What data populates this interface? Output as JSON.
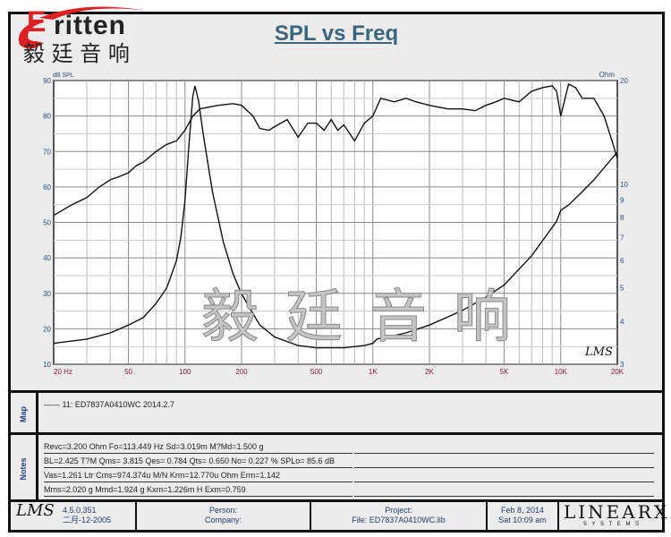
{
  "logo": {
    "brand": "ritten",
    "brand_initial": "E",
    "chinese": "毅 廷 音 响"
  },
  "watermark": "毅廷音响",
  "chart_data": {
    "type": "line",
    "title": "SPL vs Freq",
    "xlabel": "",
    "ylabel": "dB SPL",
    "y2label": "Ohm",
    "xscale": "log",
    "xlim": [
      20,
      20000
    ],
    "ylim": [
      10,
      90
    ],
    "y2scale": "log",
    "y2lim": [
      3,
      20
    ],
    "grid": true,
    "x_ticks": [
      {
        "v": 20,
        "label": "20  Hz"
      },
      {
        "v": 50,
        "label": "50"
      },
      {
        "v": 100,
        "label": "100"
      },
      {
        "v": 200,
        "label": "200"
      },
      {
        "v": 500,
        "label": "500"
      },
      {
        "v": 1000,
        "label": "1K"
      },
      {
        "v": 2000,
        "label": "2K"
      },
      {
        "v": 5000,
        "label": "5K"
      },
      {
        "v": 10000,
        "label": "10K"
      },
      {
        "v": 20000,
        "label": "20K"
      }
    ],
    "y_ticks": [
      10,
      20,
      30,
      40,
      50,
      60,
      70,
      80,
      90
    ],
    "y2_ticks": [
      3,
      4,
      5,
      6,
      7,
      8,
      9,
      10,
      20
    ],
    "series": [
      {
        "name": "SPL",
        "axis": "left",
        "x": [
          20,
          25,
          30,
          35,
          40,
          45,
          50,
          55,
          60,
          70,
          80,
          90,
          100,
          110,
          120,
          150,
          180,
          200,
          230,
          250,
          280,
          300,
          350,
          400,
          450,
          500,
          550,
          600,
          650,
          700,
          800,
          900,
          1000,
          1100,
          1300,
          1500,
          1700,
          2000,
          2500,
          3000,
          3500,
          4000,
          4500,
          5000,
          6000,
          7000,
          8000,
          9000,
          9500,
          10000,
          11000,
          12000,
          13000,
          15000,
          17000,
          19000,
          20000
        ],
        "y": [
          52,
          55,
          57,
          60,
          62,
          63,
          64,
          66,
          67,
          70,
          72,
          73,
          76,
          80,
          82,
          83,
          83.5,
          83,
          80,
          76.5,
          76,
          77,
          79,
          74,
          78,
          78,
          76,
          79,
          76,
          77.5,
          73,
          78,
          80,
          85,
          84,
          85,
          84,
          83,
          82,
          82,
          81.5,
          83,
          84,
          85,
          84,
          87,
          88,
          88.5,
          87,
          80,
          89,
          88,
          85,
          85,
          80,
          72,
          68
        ]
      },
      {
        "name": "Impedance",
        "axis": "right",
        "x": [
          20,
          30,
          40,
          50,
          60,
          70,
          80,
          90,
          95,
          100,
          105,
          110,
          113,
          118,
          125,
          140,
          160,
          180,
          200,
          250,
          300,
          400,
          500,
          700,
          900,
          1000,
          1050,
          1200,
          1500,
          2000,
          3000,
          4000,
          5000,
          7000,
          9500,
          10000,
          11000,
          13000,
          15000,
          20000
        ],
        "y": [
          3.45,
          3.55,
          3.7,
          3.9,
          4.1,
          4.5,
          5,
          6,
          7,
          9,
          13,
          18,
          19.3,
          17.5,
          14,
          9.5,
          6.8,
          5.5,
          4.8,
          3.9,
          3.6,
          3.4,
          3.35,
          3.35,
          3.4,
          3.45,
          3.55,
          3.6,
          3.7,
          3.9,
          4.3,
          4.7,
          5.1,
          6.2,
          7.8,
          8.4,
          8.7,
          9.5,
          10.3,
          12.4
        ]
      }
    ]
  },
  "lms_mark": "LMS",
  "map": {
    "label": "Map",
    "entry": "11: ED7837A0410WC    2014.2.7"
  },
  "notes": {
    "label": "Notes",
    "lines": [
      "Revc=3.200 Ohm  Fo=113.449 Hz  Sd=3.019m M?Md=1.500 g",
      "BL=2.425 T?M  Qms= 3.815  Qes= 0.784  Qts= 0.650  No= 0.227 %  SPLo= 85.6 dB",
      "Vas=1.261 Ltr  Cms=974.374u M/N  Krm=12.770u Ohm  Erm=1.142",
      "Mms=2.020 g  Mmd=1.924 g  Kxm=1.226m H  Exm=0.759"
    ]
  },
  "footer": {
    "version": "4.5.0.351",
    "build_date": "二月-12-2005",
    "person": "Person:",
    "company": "Company:",
    "project": "Project:",
    "file": "File: ED7837A0410WC.lib",
    "date": "Feb  8, 2014",
    "time": "Sat 10:09 am",
    "brand": "LINEARX",
    "brand_sub": "S Y S T E M S"
  }
}
